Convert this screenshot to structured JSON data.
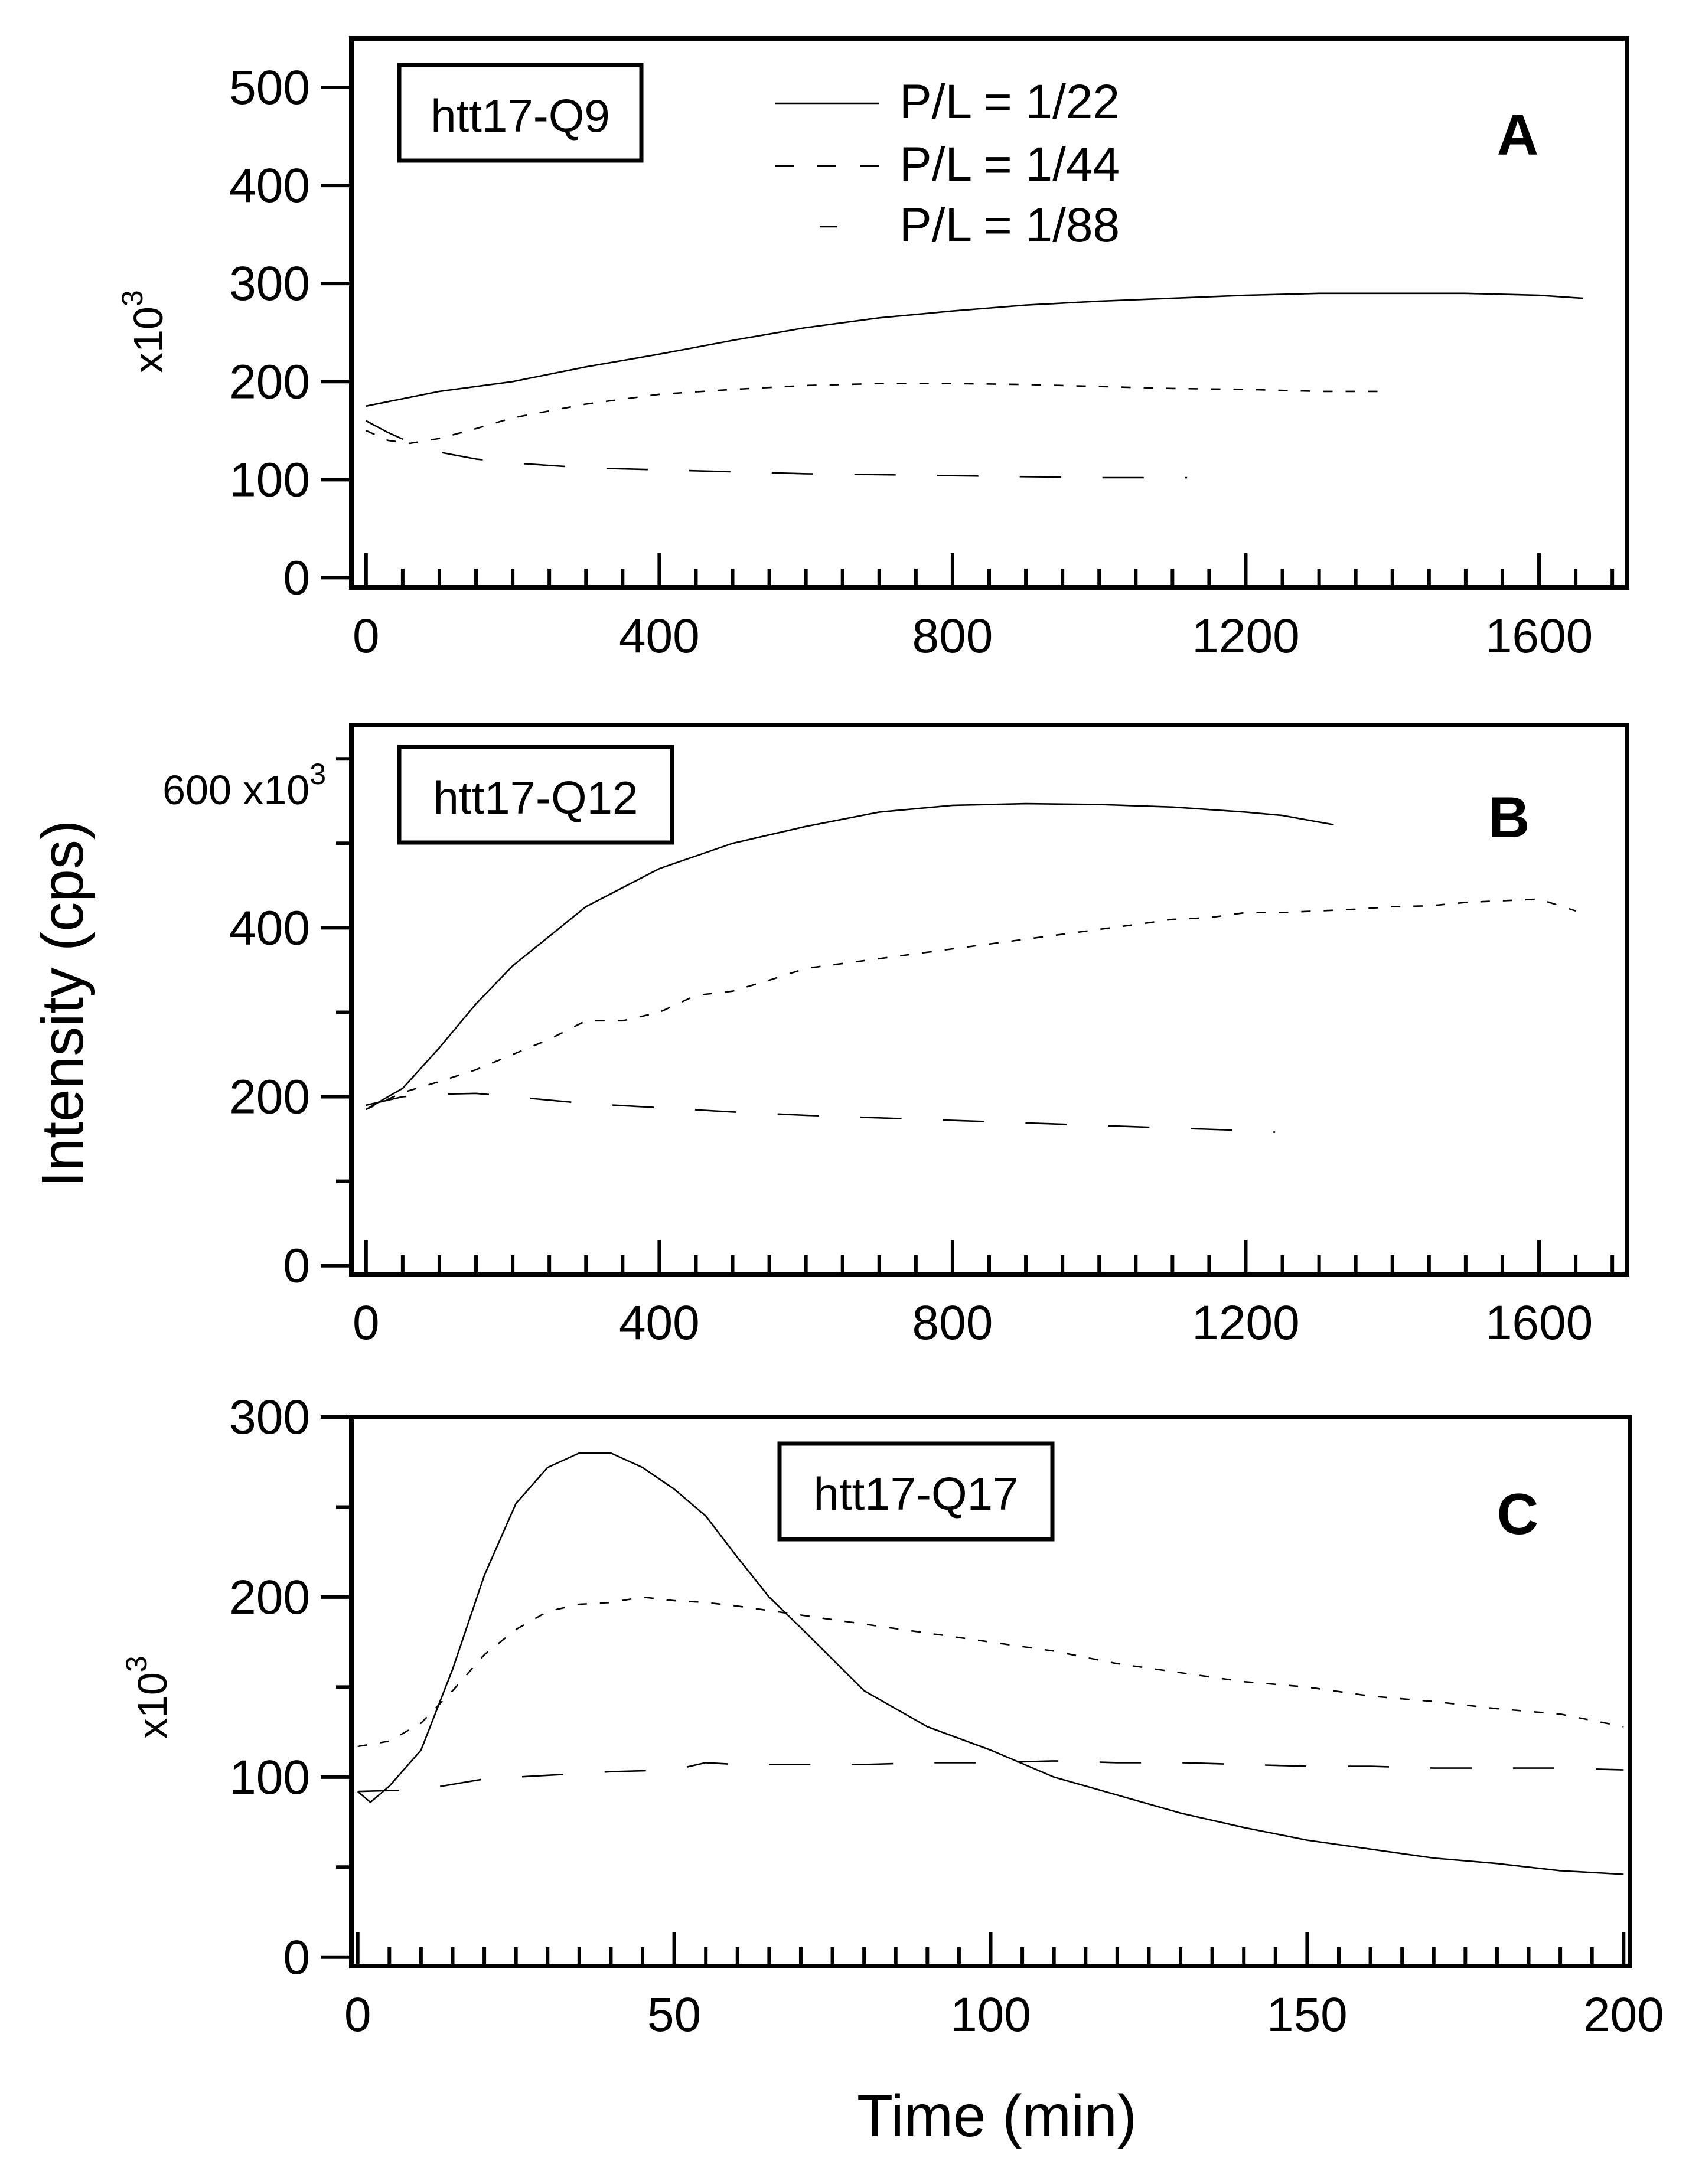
{
  "figure": {
    "ylabel": "Intensity (cps)",
    "xlabel": "Time (min)"
  },
  "chart_data": [
    {
      "type": "line",
      "panel": "A",
      "sample_label": "htt17-Q9",
      "multiplier_label": "x10",
      "multiplier_exp": "3",
      "xlim": [
        -20,
        1720
      ],
      "ylim": [
        -10,
        550
      ],
      "xticks": [
        0,
        400,
        800,
        1200,
        1600
      ],
      "yticks": [
        0,
        100,
        200,
        300,
        400,
        500
      ],
      "xminor": 50,
      "legend": {
        "position": "top-center",
        "entries": [
          {
            "name": "P/L = 1/22",
            "style": "solid"
          },
          {
            "name": "P/L = 1/44",
            "style": "short-dash"
          },
          {
            "name": "P/L = 1/88",
            "style": "long-dash"
          }
        ]
      },
      "series": [
        {
          "name": "P/L = 1/22",
          "style": "solid",
          "x": [
            0,
            100,
            200,
            300,
            400,
            500,
            600,
            700,
            800,
            900,
            1000,
            1100,
            1200,
            1300,
            1400,
            1500,
            1600,
            1660
          ],
          "y": [
            175,
            190,
            200,
            215,
            228,
            242,
            255,
            265,
            272,
            278,
            282,
            285,
            288,
            290,
            290,
            290,
            288,
            285
          ]
        },
        {
          "name": "P/L = 1/44",
          "style": "short-dash",
          "x": [
            0,
            30,
            60,
            100,
            150,
            200,
            300,
            400,
            500,
            600,
            700,
            800,
            900,
            1000,
            1100,
            1200,
            1300,
            1380
          ],
          "y": [
            150,
            140,
            137,
            142,
            152,
            163,
            177,
            187,
            192,
            196,
            198,
            198,
            197,
            195,
            193,
            192,
            190,
            190
          ]
        },
        {
          "name": "P/L = 1/88",
          "style": "long-dash",
          "x": [
            0,
            30,
            60,
            100,
            150,
            200,
            300,
            400,
            500,
            600,
            700,
            800,
            900,
            1000,
            1120
          ],
          "y": [
            160,
            148,
            138,
            128,
            121,
            117,
            112,
            110,
            108,
            106,
            105,
            104,
            103,
            102,
            102
          ]
        }
      ]
    },
    {
      "type": "line",
      "panel": "B",
      "sample_label": "htt17-Q12",
      "multiplier_label": "600 x10",
      "multiplier_exp": "3",
      "xlim": [
        -20,
        1720
      ],
      "ylim": [
        -10,
        640
      ],
      "xticks": [
        0,
        400,
        800,
        1200,
        1600
      ],
      "yticks": [
        0,
        200,
        400
      ],
      "yminor": 100,
      "xminor": 50,
      "series": [
        {
          "name": "P/L = 1/22",
          "style": "solid",
          "x": [
            0,
            50,
            100,
            150,
            200,
            300,
            400,
            500,
            600,
            700,
            800,
            900,
            1000,
            1100,
            1200,
            1250,
            1320
          ],
          "y": [
            185,
            210,
            258,
            310,
            355,
            425,
            470,
            500,
            520,
            537,
            545,
            547,
            546,
            543,
            537,
            533,
            522
          ]
        },
        {
          "name": "P/L = 1/44",
          "style": "short-dash",
          "x": [
            0,
            50,
            100,
            150,
            200,
            250,
            300,
            350,
            400,
            450,
            500,
            550,
            600,
            1060,
            1100,
            1150,
            1200,
            1250,
            1300,
            1350,
            1400,
            1450,
            1500,
            1550,
            1600,
            1650
          ],
          "y": [
            185,
            205,
            218,
            232,
            250,
            268,
            290,
            290,
            300,
            320,
            325,
            338,
            352,
            405,
            410,
            412,
            418,
            418,
            420,
            422,
            425,
            426,
            430,
            432,
            434,
            420
          ]
        },
        {
          "name": "P/L = 1/88",
          "style": "long-dash",
          "x": [
            0,
            50,
            100,
            150,
            200,
            300,
            400,
            500,
            600,
            700,
            800,
            900,
            1000,
            1100,
            1200,
            1240
          ],
          "y": [
            190,
            200,
            203,
            204,
            200,
            192,
            187,
            182,
            178,
            175,
            172,
            169,
            166,
            163,
            160,
            158
          ]
        }
      ]
    },
    {
      "type": "line",
      "panel": "C",
      "sample_label": "htt17-Q17",
      "multiplier_label": "x10",
      "multiplier_exp": "3",
      "xlim": [
        -1,
        201
      ],
      "ylim": [
        -5,
        300
      ],
      "xticks": [
        0,
        50,
        100,
        150,
        200
      ],
      "yticks": [
        0,
        100,
        200,
        300
      ],
      "yminor": 50,
      "xminor": 5,
      "series": [
        {
          "name": "P/L = 1/22",
          "style": "solid",
          "x": [
            0,
            2,
            5,
            10,
            15,
            20,
            25,
            30,
            35,
            40,
            45,
            50,
            55,
            60,
            65,
            70,
            80,
            90,
            100,
            110,
            120,
            130,
            140,
            150,
            160,
            170,
            180,
            190,
            200
          ],
          "y": [
            92,
            86,
            95,
            115,
            160,
            212,
            252,
            272,
            280,
            280,
            272,
            260,
            245,
            222,
            200,
            183,
            148,
            128,
            115,
            100,
            90,
            80,
            72,
            65,
            60,
            55,
            52,
            48,
            46
          ]
        },
        {
          "name": "P/L = 1/44",
          "style": "short-dash",
          "x": [
            0,
            5,
            10,
            15,
            20,
            25,
            30,
            35,
            40,
            45,
            50,
            55,
            60,
            70,
            80,
            90,
            100,
            110,
            120,
            130,
            140,
            150,
            160,
            170,
            180,
            190,
            200
          ],
          "y": [
            117,
            120,
            130,
            148,
            168,
            182,
            192,
            196,
            197,
            200,
            198,
            197,
            195,
            190,
            185,
            180,
            175,
            170,
            163,
            158,
            153,
            150,
            145,
            142,
            138,
            135,
            128
          ]
        },
        {
          "name": "P/L = 1/88",
          "style": "long-dash",
          "x": [
            0,
            10,
            20,
            30,
            40,
            50,
            55,
            60,
            70,
            80,
            90,
            100,
            110,
            120,
            130,
            140,
            150,
            160,
            170,
            180,
            190,
            200
          ],
          "y": [
            92,
            93,
            99,
            101,
            103,
            104,
            108,
            107,
            107,
            107,
            108,
            108,
            109,
            108,
            108,
            107,
            106,
            106,
            105,
            105,
            105,
            104
          ]
        }
      ]
    }
  ]
}
